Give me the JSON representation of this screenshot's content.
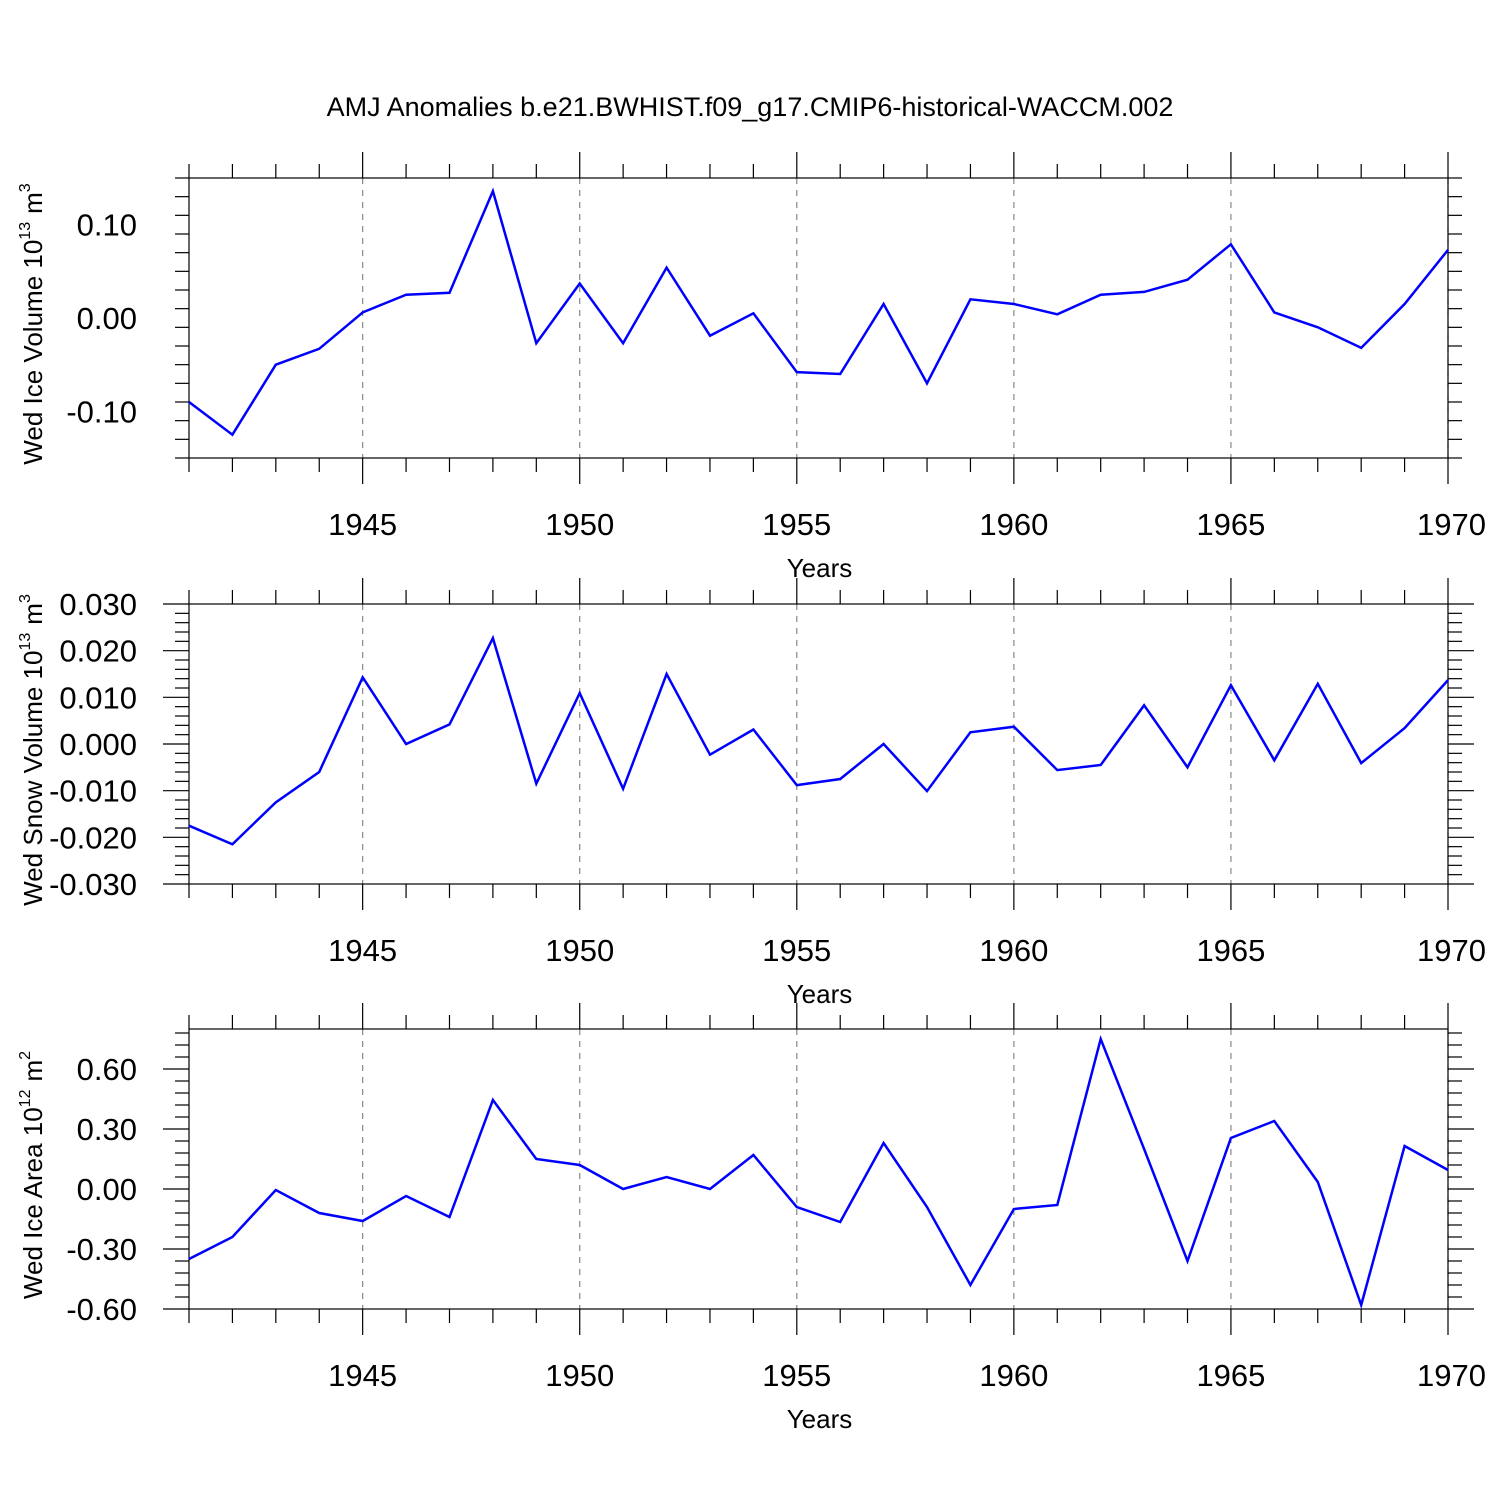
{
  "title": "AMJ Anomalies b.e21.BWHIST.f09_g17.CMIP6-historical-WACCM.002",
  "colors": {
    "line": "#0000ff",
    "axis": "#000000",
    "grid": "#888888"
  },
  "chart_data": [
    {
      "type": "line",
      "ylabel_main": "Wed Ice Volume 10",
      "ylabel_exp": "13",
      "ylabel_unit": "m",
      "ylabel_unit_exp": "3",
      "xlabel": "Years",
      "xlim": [
        1941,
        1970
      ],
      "ylim": [
        -0.15,
        0.15
      ],
      "yticks": [
        -0.1,
        0.0,
        0.1
      ],
      "ytick_labels": [
        "-0.10",
        "0.00",
        "0.10"
      ],
      "xticks": [
        1945,
        1950,
        1955,
        1960,
        1965,
        1970
      ],
      "xtick_labels": [
        "1945",
        "1950",
        "1955",
        "1960",
        "1965",
        "1970"
      ],
      "grid_x": true,
      "x": [
        1941,
        1942,
        1943,
        1944,
        1945,
        1946,
        1947,
        1948,
        1949,
        1950,
        1951,
        1952,
        1953,
        1954,
        1955,
        1956,
        1957,
        1958,
        1959,
        1960,
        1961,
        1962,
        1963,
        1964,
        1965,
        1966,
        1967,
        1968,
        1969,
        1970
      ],
      "values": [
        -0.09,
        -0.125,
        -0.05,
        -0.033,
        0.006,
        0.025,
        0.027,
        0.136,
        -0.027,
        0.037,
        -0.027,
        0.054,
        -0.019,
        0.005,
        -0.058,
        -0.06,
        0.015,
        -0.07,
        0.02,
        0.015,
        0.004,
        0.025,
        0.028,
        0.041,
        0.079,
        0.006,
        -0.01,
        -0.032,
        0.015,
        0.073
      ]
    },
    {
      "type": "line",
      "ylabel_main": "Wed Snow Volume 10",
      "ylabel_exp": "13",
      "ylabel_unit": "m",
      "ylabel_unit_exp": "3",
      "xlabel": "Years",
      "xlim": [
        1941,
        1970
      ],
      "ylim": [
        -0.03,
        0.03
      ],
      "yticks": [
        -0.03,
        -0.02,
        -0.01,
        0.0,
        0.01,
        0.02,
        0.03
      ],
      "ytick_labels": [
        "-0.030",
        "-0.020",
        "-0.010",
        "0.000",
        "0.010",
        "0.020",
        "0.030"
      ],
      "xticks": [
        1945,
        1950,
        1955,
        1960,
        1965,
        1970
      ],
      "xtick_labels": [
        "1945",
        "1950",
        "1955",
        "1960",
        "1965",
        "1970"
      ],
      "grid_x": true,
      "x": [
        1941,
        1942,
        1943,
        1944,
        1945,
        1946,
        1947,
        1948,
        1949,
        1950,
        1951,
        1952,
        1953,
        1954,
        1955,
        1956,
        1957,
        1958,
        1959,
        1960,
        1961,
        1962,
        1963,
        1964,
        1965,
        1966,
        1967,
        1968,
        1969,
        1970
      ],
      "values": [
        -0.0175,
        -0.0215,
        -0.0125,
        -0.006,
        0.0143,
        0.0,
        0.0042,
        0.0227,
        -0.0085,
        0.0109,
        -0.0096,
        0.015,
        -0.0023,
        0.0031,
        -0.0088,
        -0.0075,
        0.0,
        -0.0101,
        0.0025,
        0.0037,
        -0.0056,
        -0.0045,
        0.0083,
        -0.005,
        0.0126,
        -0.0035,
        0.0129,
        -0.0041,
        0.0034,
        0.0137
      ]
    },
    {
      "type": "line",
      "ylabel_main": "Wed Ice Area 10",
      "ylabel_exp": "12",
      "ylabel_unit": "m",
      "ylabel_unit_exp": "2",
      "xlabel": "Years",
      "xlim": [
        1941,
        1970
      ],
      "ylim": [
        -0.6,
        0.8
      ],
      "yticks": [
        -0.6,
        -0.3,
        0.0,
        0.3,
        0.6
      ],
      "ytick_labels": [
        "-0.60",
        "-0.30",
        "0.00",
        "0.30",
        "0.60"
      ],
      "xticks": [
        1945,
        1950,
        1955,
        1960,
        1965,
        1970
      ],
      "xtick_labels": [
        "1945",
        "1950",
        "1955",
        "1960",
        "1965",
        "1970"
      ],
      "grid_x": true,
      "x": [
        1941,
        1942,
        1943,
        1944,
        1945,
        1946,
        1947,
        1948,
        1949,
        1950,
        1951,
        1952,
        1953,
        1954,
        1955,
        1956,
        1957,
        1958,
        1959,
        1960,
        1961,
        1962,
        1963,
        1964,
        1965,
        1966,
        1967,
        1968,
        1969,
        1970
      ],
      "values": [
        -0.35,
        -0.24,
        -0.005,
        -0.12,
        -0.16,
        -0.035,
        -0.14,
        0.445,
        0.15,
        0.12,
        0.0,
        0.06,
        0.0,
        0.17,
        -0.09,
        -0.165,
        0.23,
        -0.09,
        -0.48,
        -0.1,
        -0.08,
        0.75,
        0.2,
        -0.36,
        0.255,
        0.34,
        0.035,
        -0.58,
        0.215,
        0.095
      ]
    }
  ]
}
